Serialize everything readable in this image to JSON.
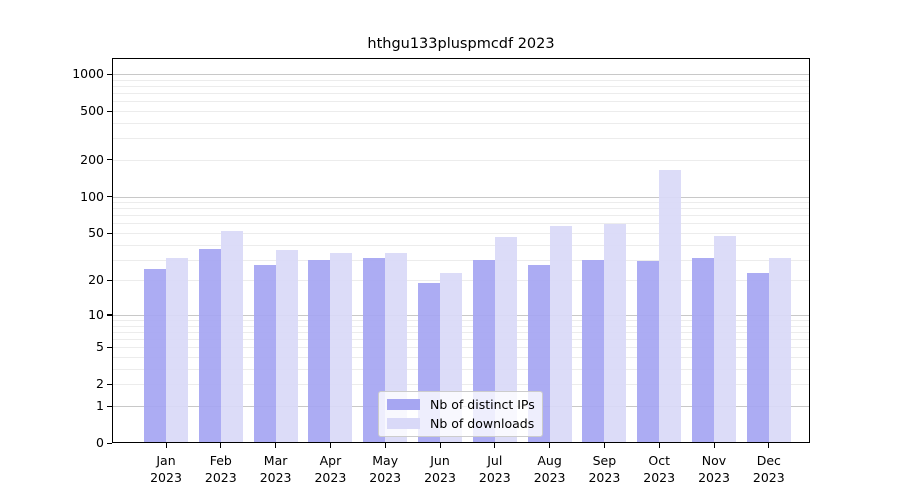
{
  "chart_data": {
    "type": "bar",
    "title": "hthgu133pluspmcdf 2023",
    "xlabel": "",
    "ylabel": "",
    "scale": "log1p",
    "grid": true,
    "ylim": [
      0,
      1350
    ],
    "yticks": [
      0,
      1,
      2,
      5,
      10,
      20,
      50,
      100,
      200,
      500,
      1000
    ],
    "categories": [
      "Jan",
      "Feb",
      "Mar",
      "Apr",
      "May",
      "Jun",
      "Jul",
      "Aug",
      "Sep",
      "Oct",
      "Nov",
      "Dec"
    ],
    "year_label": "2023",
    "legend_position": "lower center",
    "series": [
      {
        "name": "Nb of distinct IPs",
        "color": "#a6a6f2",
        "values": [
          25,
          37,
          27,
          30,
          31,
          19,
          30,
          27,
          30,
          29,
          31,
          23
        ]
      },
      {
        "name": "Nb of downloads",
        "color": "#d9d9f8",
        "values": [
          31,
          52,
          36,
          34,
          34,
          23,
          46,
          57,
          59,
          165,
          47,
          31
        ]
      }
    ]
  }
}
